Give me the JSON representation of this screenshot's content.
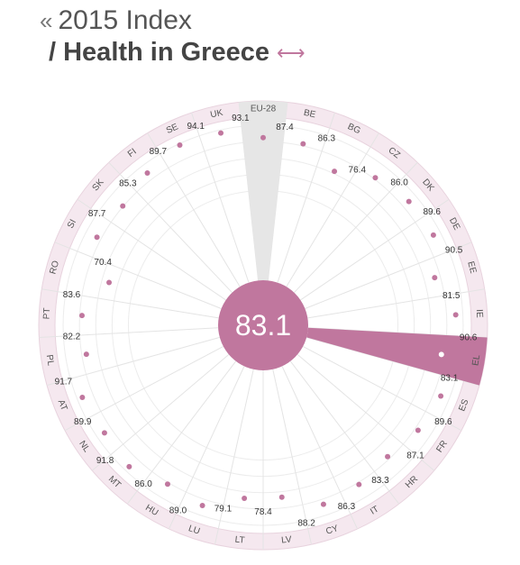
{
  "header": {
    "back_arrow": "«",
    "index_title": "2015 Index",
    "subtitle": "/ Health in Greece",
    "swap_icon": "⟷"
  },
  "colors": {
    "accent": "#c0779e",
    "ring": "#f5e8ef",
    "eu_sector": "#e6e6e6"
  },
  "chart_data": {
    "type": "radial",
    "title": "2015 Index / Health in Greece",
    "center_value": "83.1",
    "scale": [
      0,
      100
    ],
    "highlighted": "EL",
    "reference": "EU-28",
    "categories": [
      "EU-28",
      "BE",
      "BG",
      "CZ",
      "DK",
      "DE",
      "EE",
      "IE",
      "EL",
      "ES",
      "FR",
      "HR",
      "IT",
      "CY",
      "LV",
      "LT",
      "LU",
      "HU",
      "MT",
      "NL",
      "AT",
      "PL",
      "PT",
      "RO",
      "SI",
      "SK",
      "FI",
      "SE",
      "UK"
    ],
    "values": [
      "87.4",
      "86.3",
      "76.4",
      "86.0",
      "89.6",
      "90.5",
      "81.5",
      "90.6",
      "83.1",
      "89.6",
      "87.1",
      "83.3",
      "86.3",
      "88.2",
      "78.4",
      "79.1",
      "89.0",
      "86.0",
      "91.8",
      "89.9",
      "91.7",
      "82.2",
      "83.6",
      "70.4",
      "87.7",
      "85.3",
      "89.7",
      "94.1",
      "93.1"
    ]
  }
}
